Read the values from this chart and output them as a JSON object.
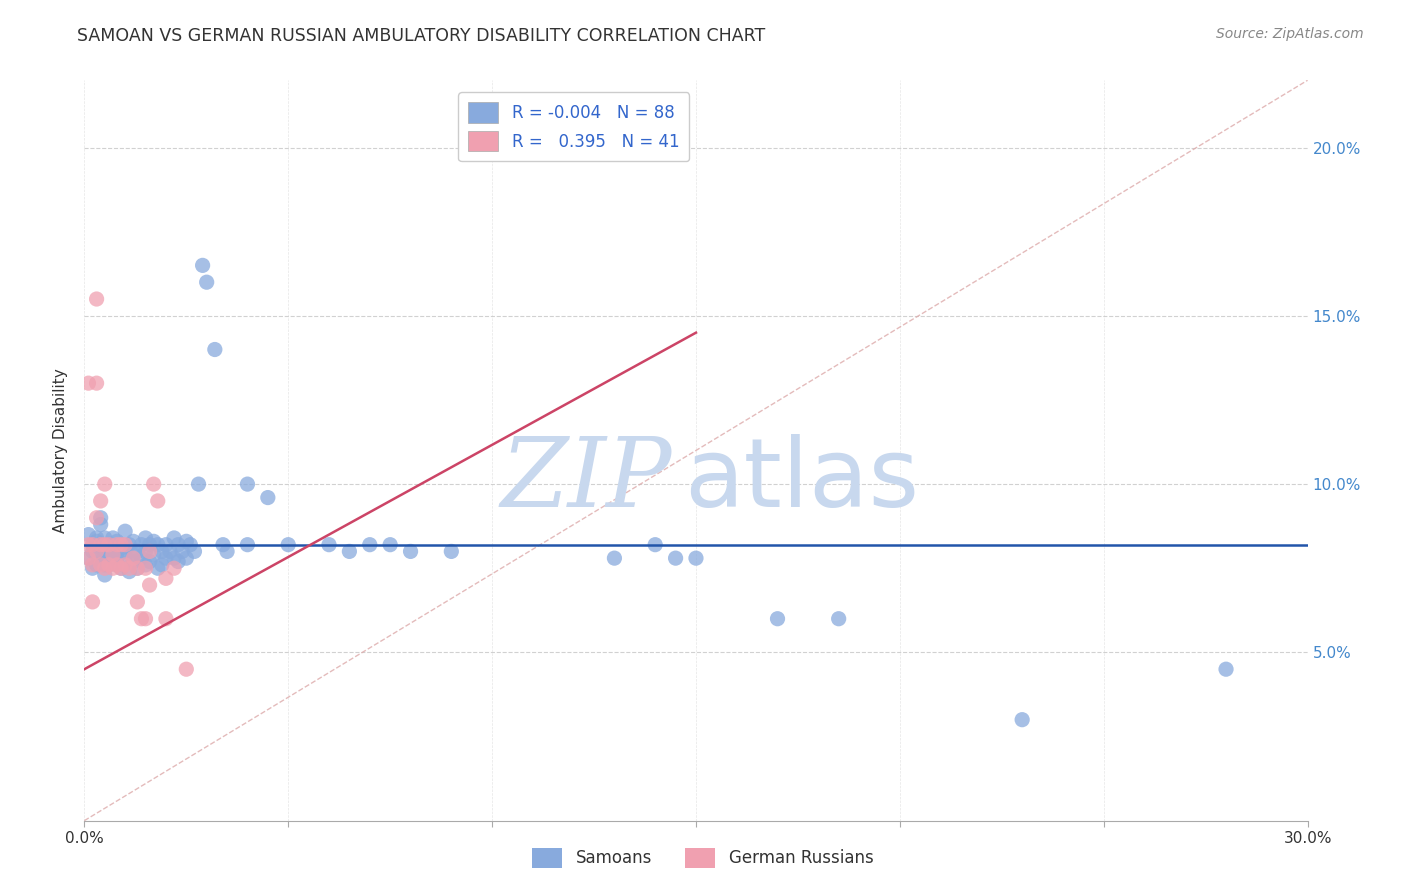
{
  "title": "SAMOAN VS GERMAN RUSSIAN AMBULATORY DISABILITY CORRELATION CHART",
  "source": "Source: ZipAtlas.com",
  "ylabel": "Ambulatory Disability",
  "xlim": [
    0.0,
    0.3
  ],
  "ylim": [
    0.0,
    0.22
  ],
  "background_color": "#ffffff",
  "grid_color": "#cccccc",
  "samoan_color": "#88aadd",
  "german_russian_color": "#f0a0b0",
  "trendline_samoan_color": "#2255aa",
  "trendline_german_russian_color": "#cc4466",
  "diagonal_color": "#ddaaaa",
  "watermark_color": "#c8d8ee",
  "R_samoan": -0.004,
  "N_samoan": 88,
  "R_german_russian": 0.395,
  "N_german_russian": 41,
  "samoan_trendline": [
    [
      0.0,
      0.082
    ],
    [
      0.3,
      0.082
    ]
  ],
  "german_russian_trendline": [
    [
      0.0,
      0.045
    ],
    [
      0.15,
      0.145
    ]
  ],
  "diagonal_line": [
    [
      0.0,
      0.0
    ],
    [
      0.3,
      0.22
    ]
  ],
  "samoan_points": [
    [
      0.001,
      0.085
    ],
    [
      0.001,
      0.078
    ],
    [
      0.002,
      0.082
    ],
    [
      0.002,
      0.075
    ],
    [
      0.002,
      0.08
    ],
    [
      0.003,
      0.079
    ],
    [
      0.003,
      0.084
    ],
    [
      0.003,
      0.076
    ],
    [
      0.003,
      0.083
    ],
    [
      0.004,
      0.077
    ],
    [
      0.004,
      0.081
    ],
    [
      0.004,
      0.088
    ],
    [
      0.004,
      0.09
    ],
    [
      0.005,
      0.076
    ],
    [
      0.005,
      0.08
    ],
    [
      0.005,
      0.084
    ],
    [
      0.005,
      0.078
    ],
    [
      0.005,
      0.073
    ],
    [
      0.006,
      0.079
    ],
    [
      0.006,
      0.082
    ],
    [
      0.006,
      0.076
    ],
    [
      0.007,
      0.078
    ],
    [
      0.007,
      0.084
    ],
    [
      0.007,
      0.08
    ],
    [
      0.008,
      0.076
    ],
    [
      0.008,
      0.083
    ],
    [
      0.008,
      0.078
    ],
    [
      0.009,
      0.075
    ],
    [
      0.009,
      0.081
    ],
    [
      0.01,
      0.08
    ],
    [
      0.01,
      0.086
    ],
    [
      0.01,
      0.078
    ],
    [
      0.011,
      0.074
    ],
    [
      0.011,
      0.082
    ],
    [
      0.012,
      0.079
    ],
    [
      0.012,
      0.083
    ],
    [
      0.012,
      0.077
    ],
    [
      0.013,
      0.08
    ],
    [
      0.013,
      0.075
    ],
    [
      0.014,
      0.082
    ],
    [
      0.014,
      0.078
    ],
    [
      0.015,
      0.076
    ],
    [
      0.015,
      0.084
    ],
    [
      0.015,
      0.08
    ],
    [
      0.016,
      0.077
    ],
    [
      0.016,
      0.082
    ],
    [
      0.017,
      0.079
    ],
    [
      0.017,
      0.083
    ],
    [
      0.018,
      0.075
    ],
    [
      0.018,
      0.082
    ],
    [
      0.019,
      0.08
    ],
    [
      0.019,
      0.076
    ],
    [
      0.02,
      0.082
    ],
    [
      0.02,
      0.078
    ],
    [
      0.021,
      0.08
    ],
    [
      0.022,
      0.084
    ],
    [
      0.022,
      0.078
    ],
    [
      0.023,
      0.082
    ],
    [
      0.023,
      0.077
    ],
    [
      0.024,
      0.08
    ],
    [
      0.025,
      0.083
    ],
    [
      0.025,
      0.078
    ],
    [
      0.026,
      0.082
    ],
    [
      0.027,
      0.08
    ],
    [
      0.028,
      0.1
    ],
    [
      0.029,
      0.165
    ],
    [
      0.03,
      0.16
    ],
    [
      0.032,
      0.14
    ],
    [
      0.034,
      0.082
    ],
    [
      0.035,
      0.08
    ],
    [
      0.04,
      0.1
    ],
    [
      0.04,
      0.082
    ],
    [
      0.045,
      0.096
    ],
    [
      0.05,
      0.082
    ],
    [
      0.06,
      0.082
    ],
    [
      0.065,
      0.08
    ],
    [
      0.07,
      0.082
    ],
    [
      0.075,
      0.082
    ],
    [
      0.08,
      0.08
    ],
    [
      0.09,
      0.08
    ],
    [
      0.13,
      0.078
    ],
    [
      0.14,
      0.082
    ],
    [
      0.145,
      0.078
    ],
    [
      0.15,
      0.078
    ],
    [
      0.17,
      0.06
    ],
    [
      0.185,
      0.06
    ],
    [
      0.23,
      0.03
    ],
    [
      0.28,
      0.045
    ]
  ],
  "german_russian_points": [
    [
      0.001,
      0.078
    ],
    [
      0.001,
      0.082
    ],
    [
      0.001,
      0.13
    ],
    [
      0.002,
      0.076
    ],
    [
      0.002,
      0.082
    ],
    [
      0.002,
      0.065
    ],
    [
      0.003,
      0.08
    ],
    [
      0.003,
      0.09
    ],
    [
      0.003,
      0.13
    ],
    [
      0.003,
      0.155
    ],
    [
      0.004,
      0.076
    ],
    [
      0.004,
      0.082
    ],
    [
      0.004,
      0.095
    ],
    [
      0.005,
      0.075
    ],
    [
      0.005,
      0.082
    ],
    [
      0.005,
      0.1
    ],
    [
      0.006,
      0.076
    ],
    [
      0.006,
      0.082
    ],
    [
      0.007,
      0.075
    ],
    [
      0.007,
      0.079
    ],
    [
      0.008,
      0.076
    ],
    [
      0.008,
      0.082
    ],
    [
      0.009,
      0.075
    ],
    [
      0.009,
      0.082
    ],
    [
      0.01,
      0.076
    ],
    [
      0.01,
      0.082
    ],
    [
      0.011,
      0.075
    ],
    [
      0.012,
      0.078
    ],
    [
      0.013,
      0.065
    ],
    [
      0.013,
      0.075
    ],
    [
      0.014,
      0.06
    ],
    [
      0.015,
      0.075
    ],
    [
      0.015,
      0.06
    ],
    [
      0.016,
      0.08
    ],
    [
      0.016,
      0.07
    ],
    [
      0.017,
      0.1
    ],
    [
      0.018,
      0.095
    ],
    [
      0.02,
      0.072
    ],
    [
      0.02,
      0.06
    ],
    [
      0.022,
      0.075
    ],
    [
      0.025,
      0.045
    ]
  ]
}
